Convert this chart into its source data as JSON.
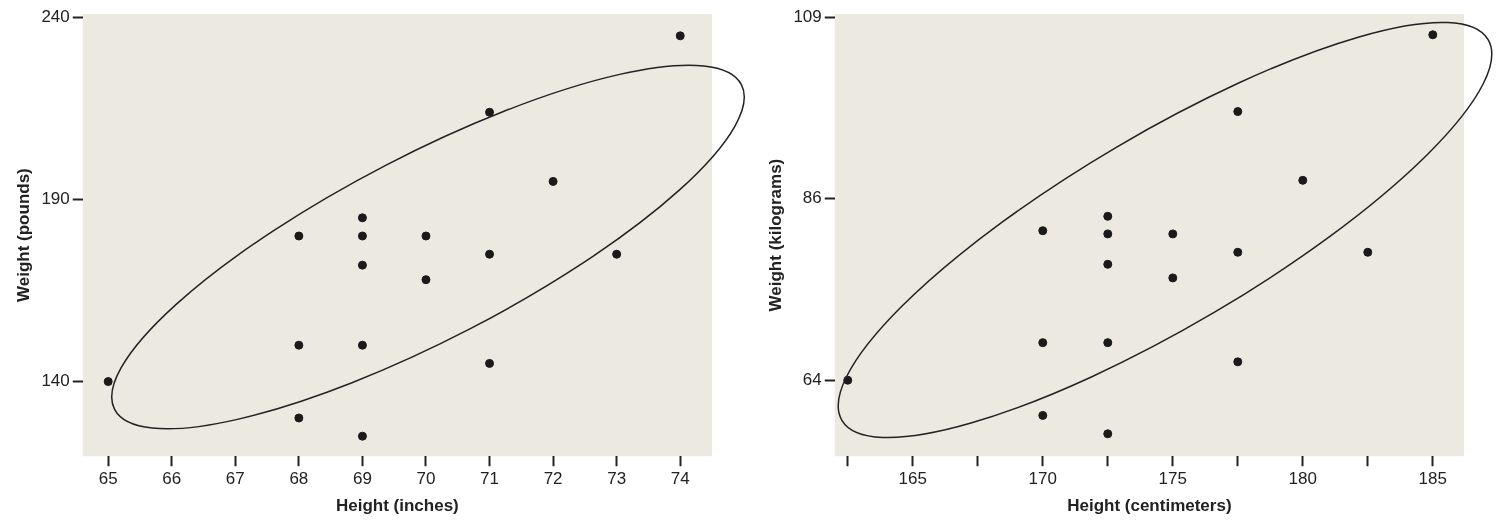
{
  "chart_data": [
    {
      "type": "scatter",
      "xlabel": "Height (inches)",
      "ylabel": "Weight (pounds)",
      "color": "#1a1a1a",
      "marker": "circle",
      "x": [
        65,
        68,
        68,
        68,
        69,
        69,
        69,
        69,
        69,
        70,
        70,
        71,
        71,
        71,
        72,
        73,
        74
      ],
      "values": [
        140,
        180,
        150,
        130,
        185,
        180,
        172,
        150,
        125,
        180,
        168,
        214,
        175,
        145,
        195,
        175,
        235
      ],
      "xlim": [
        64.6,
        74.5
      ],
      "ylim": [
        119.5,
        241
      ],
      "xticks": [
        65,
        66,
        67,
        68,
        69,
        70,
        71,
        72,
        73,
        74
      ],
      "yticks": [
        140,
        190,
        240
      ]
    },
    {
      "type": "scatter",
      "xlabel": "Height (centimeters)",
      "ylabel": "Weight (kilograms)",
      "color": "#1a1a1a",
      "marker": "circle",
      "x": [
        162.5,
        170,
        170,
        170,
        172.5,
        172.5,
        172.5,
        172.5,
        172.5,
        175,
        175,
        177.5,
        177.5,
        177.5,
        180,
        182.5,
        185
      ],
      "values": [
        63.5,
        82.2,
        68.2,
        59.1,
        84,
        81.8,
        78,
        68.2,
        56.8,
        81.8,
        76.3,
        97.1,
        79.5,
        65.8,
        88.5,
        79.5,
        106.7
      ],
      "xlim": [
        162,
        186.2
      ],
      "ylim": [
        54,
        109.3
      ],
      "xticks": [
        {
          "value": 162.5,
          "label": null
        },
        165,
        {
          "value": 167.5,
          "label": null
        },
        170,
        {
          "value": 172.5,
          "label": null
        },
        175,
        {
          "value": 177.5,
          "label": null
        },
        180,
        {
          "value": 182.5,
          "label": null
        },
        185
      ],
      "yticks": [
        {
          "value": 63.5,
          "label": "64"
        },
        {
          "value": 86.2,
          "label": "86"
        },
        {
          "value": 108.9,
          "label": "109"
        }
      ]
    }
  ]
}
